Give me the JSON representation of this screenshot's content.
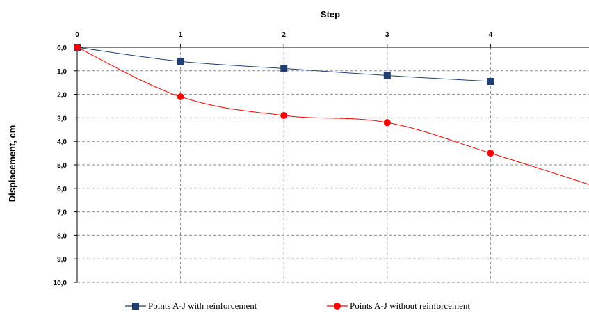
{
  "chart_data": {
    "type": "line",
    "title": "Step",
    "xlabel": "Step",
    "ylabel": "Displacement, cm",
    "x_axis_position": "top",
    "y_axis_inverted": true,
    "xlim": [
      0,
      5
    ],
    "ylim": [
      0,
      10
    ],
    "x_ticks": [
      0,
      1,
      2,
      3,
      4
    ],
    "y_ticks": [
      "0,0",
      "1,0",
      "2,0",
      "3,0",
      "4,0",
      "5,0",
      "6,0",
      "7,0",
      "8,0",
      "9,0",
      "10,0"
    ],
    "grid": true,
    "legend_position": "bottom",
    "series": [
      {
        "name": "Points A-J with reinforcement",
        "color": "#1f3f73",
        "marker": "square",
        "x": [
          0,
          1,
          2,
          3,
          4
        ],
        "y": [
          0.0,
          0.6,
          0.9,
          1.2,
          1.45
        ]
      },
      {
        "name": "Points A-J without reinforcement",
        "color": "#ff0000",
        "marker": "circle",
        "x": [
          0,
          1,
          2,
          3,
          4,
          5
        ],
        "y": [
          0.0,
          2.1,
          2.9,
          3.2,
          4.5,
          5.9
        ]
      }
    ]
  }
}
